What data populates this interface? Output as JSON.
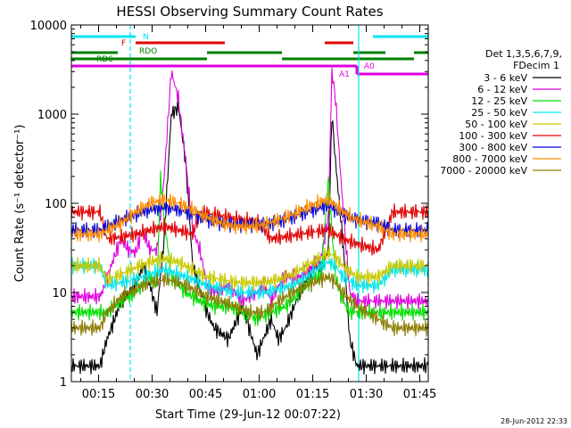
{
  "chart_data": {
    "type": "line",
    "title": "HESSI Observing Summary Count Rates",
    "xlabel": "Start Time (29-Jun-12 00:07:22)",
    "ylabel": "Count Rate (s⁻¹ detector⁻¹)",
    "yscale": "log",
    "ylim": [
      1,
      10000
    ],
    "xlim_minutes": [
      0,
      100
    ],
    "x_ticks": [
      "00:15",
      "00:30",
      "00:45",
      "01:00",
      "01:15",
      "01:30",
      "01:45"
    ],
    "y_ticks": [
      "1",
      "10",
      "100",
      "1000",
      "10000"
    ],
    "timestamp": "28-Jun-2012 22:33",
    "legend": {
      "header1": "Det 1,3,5,6,7,9,",
      "header2": "FDecim 1",
      "position": "right"
    },
    "flags": [
      {
        "name": "N",
        "color": "#00e5ee"
      },
      {
        "name": "F",
        "color": "#e00000"
      },
      {
        "name": "RDO",
        "color": "#008000"
      },
      {
        "name": "RD6",
        "color": "#008000"
      },
      {
        "name": "A1",
        "color": "#e000e0"
      },
      {
        "name": "A0",
        "color": "#e000e0"
      }
    ],
    "series": [
      {
        "name": "3 - 6 keV",
        "color": "#000000",
        "points": [
          [
            0,
            1.5
          ],
          [
            8,
            1.5
          ],
          [
            10,
            3
          ],
          [
            14,
            8
          ],
          [
            18,
            12
          ],
          [
            20,
            20
          ],
          [
            22,
            12
          ],
          [
            24,
            6
          ],
          [
            26,
            40
          ],
          [
            28,
            1000
          ],
          [
            30,
            1200
          ],
          [
            32,
            300
          ],
          [
            34,
            20
          ],
          [
            38,
            6
          ],
          [
            40,
            4
          ],
          [
            44,
            3
          ],
          [
            48,
            7
          ],
          [
            52,
            2
          ],
          [
            56,
            5
          ],
          [
            58,
            3
          ],
          [
            60,
            4
          ],
          [
            64,
            10
          ],
          [
            68,
            20
          ],
          [
            70,
            18
          ],
          [
            72,
            30
          ],
          [
            73,
            1000
          ],
          [
            74,
            300
          ],
          [
            76,
            40
          ],
          [
            78,
            3
          ],
          [
            80,
            1.5
          ],
          [
            100,
            1.5
          ]
        ]
      },
      {
        "name": "6 - 12 keV",
        "color": "#e000e0",
        "points": [
          [
            0,
            9
          ],
          [
            8,
            9
          ],
          [
            9,
            11
          ],
          [
            12,
            25
          ],
          [
            14,
            40
          ],
          [
            16,
            30
          ],
          [
            18,
            28
          ],
          [
            20,
            50
          ],
          [
            22,
            30
          ],
          [
            24,
            30
          ],
          [
            26,
            200
          ],
          [
            28,
            3000
          ],
          [
            30,
            1500
          ],
          [
            32,
            300
          ],
          [
            34,
            50
          ],
          [
            36,
            30
          ],
          [
            38,
            12
          ],
          [
            40,
            10
          ],
          [
            44,
            12
          ],
          [
            48,
            8
          ],
          [
            52,
            10
          ],
          [
            54,
            12
          ],
          [
            56,
            8
          ],
          [
            58,
            12
          ],
          [
            60,
            15
          ],
          [
            64,
            15
          ],
          [
            68,
            20
          ],
          [
            70,
            25
          ],
          [
            72,
            70
          ],
          [
            73,
            3000
          ],
          [
            74,
            1500
          ],
          [
            76,
            100
          ],
          [
            78,
            10
          ],
          [
            80,
            8
          ],
          [
            100,
            8
          ]
        ]
      },
      {
        "name": "12 - 25 keV",
        "color": "#00e000",
        "points": [
          [
            0,
            6
          ],
          [
            8,
            6
          ],
          [
            10,
            6
          ],
          [
            14,
            8
          ],
          [
            18,
            10
          ],
          [
            22,
            15
          ],
          [
            24,
            12
          ],
          [
            25,
            200
          ],
          [
            26,
            70
          ],
          [
            28,
            15
          ],
          [
            32,
            10
          ],
          [
            36,
            8
          ],
          [
            40,
            7
          ],
          [
            44,
            7
          ],
          [
            48,
            6
          ],
          [
            52,
            5
          ],
          [
            56,
            6
          ],
          [
            60,
            7
          ],
          [
            64,
            10
          ],
          [
            68,
            15
          ],
          [
            70,
            15
          ],
          [
            72,
            200
          ],
          [
            73,
            50
          ],
          [
            74,
            15
          ],
          [
            76,
            8
          ],
          [
            78,
            6
          ],
          [
            80,
            6
          ],
          [
            100,
            6
          ]
        ]
      },
      {
        "name": "25 - 50 keV",
        "color": "#00e5ee",
        "points": [
          [
            0,
            20
          ],
          [
            8,
            20
          ],
          [
            10,
            12
          ],
          [
            14,
            13
          ],
          [
            18,
            14
          ],
          [
            22,
            16
          ],
          [
            26,
            18
          ],
          [
            30,
            16
          ],
          [
            34,
            14
          ],
          [
            38,
            12
          ],
          [
            42,
            11
          ],
          [
            46,
            10
          ],
          [
            50,
            10
          ],
          [
            54,
            10
          ],
          [
            58,
            11
          ],
          [
            62,
            12
          ],
          [
            66,
            15
          ],
          [
            70,
            20
          ],
          [
            72,
            22
          ],
          [
            74,
            20
          ],
          [
            76,
            15
          ],
          [
            80,
            12
          ],
          [
            86,
            12
          ],
          [
            90,
            18
          ],
          [
            100,
            18
          ]
        ]
      },
      {
        "name": "50 - 100 keV",
        "color": "#c8c800",
        "points": [
          [
            0,
            20
          ],
          [
            8,
            20
          ],
          [
            10,
            14
          ],
          [
            14,
            16
          ],
          [
            18,
            19
          ],
          [
            22,
            22
          ],
          [
            26,
            24
          ],
          [
            30,
            22
          ],
          [
            34,
            18
          ],
          [
            38,
            15
          ],
          [
            42,
            14
          ],
          [
            46,
            13
          ],
          [
            50,
            13
          ],
          [
            54,
            13
          ],
          [
            58,
            14
          ],
          [
            62,
            16
          ],
          [
            66,
            20
          ],
          [
            70,
            25
          ],
          [
            72,
            28
          ],
          [
            74,
            25
          ],
          [
            76,
            20
          ],
          [
            80,
            15
          ],
          [
            86,
            15
          ],
          [
            90,
            20
          ],
          [
            100,
            20
          ]
        ]
      },
      {
        "name": "100 - 300 keV",
        "color": "#e00000",
        "points": [
          [
            0,
            80
          ],
          [
            8,
            80
          ],
          [
            10,
            40
          ],
          [
            14,
            42
          ],
          [
            18,
            45
          ],
          [
            22,
            50
          ],
          [
            26,
            55
          ],
          [
            30,
            50
          ],
          [
            34,
            45
          ],
          [
            36,
            80
          ],
          [
            40,
            75
          ],
          [
            44,
            70
          ],
          [
            48,
            65
          ],
          [
            52,
            62
          ],
          [
            56,
            40
          ],
          [
            60,
            42
          ],
          [
            64,
            45
          ],
          [
            68,
            48
          ],
          [
            72,
            50
          ],
          [
            74,
            45
          ],
          [
            76,
            40
          ],
          [
            80,
            35
          ],
          [
            86,
            30
          ],
          [
            90,
            80
          ],
          [
            100,
            80
          ]
        ]
      },
      {
        "name": "300 - 800 keV",
        "color": "#0000e0",
        "points": [
          [
            0,
            50
          ],
          [
            8,
            50
          ],
          [
            10,
            55
          ],
          [
            14,
            65
          ],
          [
            18,
            75
          ],
          [
            22,
            85
          ],
          [
            26,
            90
          ],
          [
            30,
            85
          ],
          [
            34,
            75
          ],
          [
            38,
            65
          ],
          [
            42,
            60
          ],
          [
            46,
            58
          ],
          [
            50,
            58
          ],
          [
            54,
            58
          ],
          [
            58,
            62
          ],
          [
            62,
            70
          ],
          [
            66,
            80
          ],
          [
            70,
            90
          ],
          [
            72,
            95
          ],
          [
            74,
            85
          ],
          [
            76,
            75
          ],
          [
            80,
            65
          ],
          [
            86,
            60
          ],
          [
            90,
            50
          ],
          [
            100,
            50
          ]
        ]
      },
      {
        "name": "800 - 7000 keV",
        "color": "#ff8c00",
        "points": [
          [
            0,
            45
          ],
          [
            8,
            45
          ],
          [
            10,
            50
          ],
          [
            14,
            60
          ],
          [
            18,
            80
          ],
          [
            22,
            100
          ],
          [
            26,
            110
          ],
          [
            30,
            100
          ],
          [
            34,
            85
          ],
          [
            38,
            70
          ],
          [
            42,
            60
          ],
          [
            46,
            55
          ],
          [
            50,
            55
          ],
          [
            54,
            58
          ],
          [
            58,
            65
          ],
          [
            62,
            75
          ],
          [
            66,
            90
          ],
          [
            70,
            105
          ],
          [
            72,
            110
          ],
          [
            74,
            95
          ],
          [
            76,
            80
          ],
          [
            80,
            65
          ],
          [
            86,
            55
          ],
          [
            90,
            45
          ],
          [
            100,
            45
          ]
        ]
      },
      {
        "name": "7000 - 20000 keV",
        "color": "#8b7d00",
        "points": [
          [
            0,
            4
          ],
          [
            8,
            4
          ],
          [
            10,
            6
          ],
          [
            14,
            9
          ],
          [
            18,
            11
          ],
          [
            22,
            13
          ],
          [
            26,
            14
          ],
          [
            30,
            13
          ],
          [
            34,
            11
          ],
          [
            38,
            9
          ],
          [
            42,
            8
          ],
          [
            46,
            7
          ],
          [
            50,
            6
          ],
          [
            54,
            6
          ],
          [
            58,
            8
          ],
          [
            62,
            10
          ],
          [
            66,
            12
          ],
          [
            70,
            14
          ],
          [
            72,
            15
          ],
          [
            74,
            13
          ],
          [
            76,
            10
          ],
          [
            80,
            7
          ],
          [
            86,
            5
          ],
          [
            90,
            4
          ],
          [
            100,
            4
          ]
        ]
      }
    ]
  }
}
